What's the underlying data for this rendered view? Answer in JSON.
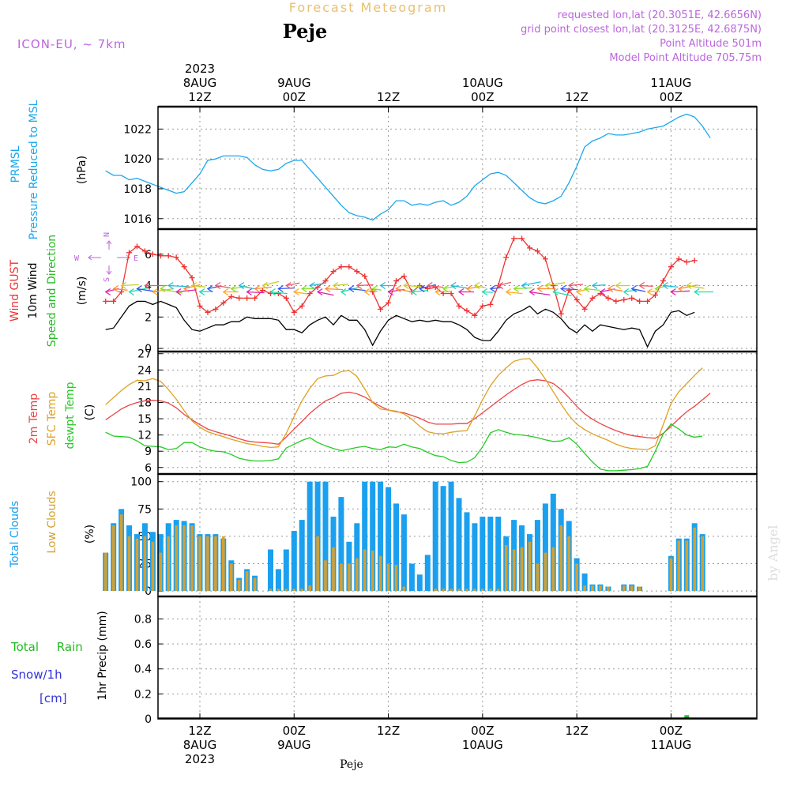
{
  "header": {
    "title": "Forecast Meteogram",
    "location": "Peje",
    "model": "ICON-EU, ~ 7km",
    "requested": "requested lon,lat (20.3051E, 42.6656N)",
    "grid_point": "grid point closest lon,lat (20.3125E, 42.6875N)",
    "point_altitude": "Point Altitude 501m",
    "model_altitude": "Model Point Altitude 705.75m",
    "footer_location": "Peje",
    "watermark": "by Angel"
  },
  "time_axis": {
    "top_labels": [
      {
        "hour": 12,
        "lines": [
          "2023",
          "8AUG",
          "12Z"
        ]
      },
      {
        "hour": 24,
        "lines": [
          "9AUG",
          "00Z"
        ]
      },
      {
        "hour": 36,
        "lines": [
          "12Z"
        ]
      },
      {
        "hour": 48,
        "lines": [
          "10AUG",
          "00Z"
        ]
      },
      {
        "hour": 60,
        "lines": [
          "12Z"
        ]
      },
      {
        "hour": 72,
        "lines": [
          "11AUG",
          "00Z"
        ]
      }
    ],
    "bottom_labels": [
      {
        "hour": 12,
        "lines": [
          "12Z",
          "8AUG",
          "2023"
        ]
      },
      {
        "hour": 24,
        "lines": [
          "00Z",
          "9AUG"
        ]
      },
      {
        "hour": 36,
        "lines": [
          "12Z"
        ]
      },
      {
        "hour": 48,
        "lines": [
          "00Z",
          "10AUG"
        ]
      },
      {
        "hour": 60,
        "lines": [
          "12Z"
        ]
      },
      {
        "hour": 72,
        "lines": [
          "00Z",
          "11AUG"
        ]
      }
    ]
  },
  "colors": {
    "pressure": "#1aa7ee",
    "gust": "#ee3333",
    "wind": "#000000",
    "direction_label": "#22bb22",
    "temp": "#ee4444",
    "sfc": "#e0a020",
    "dew": "#22cc22",
    "total_clouds": "#1aa0ee",
    "low_clouds": "#d4a032",
    "rain": "#22bb22",
    "snow": "#3333dd",
    "header_purple": "#bb66dd",
    "title_gold": "#e8c070"
  },
  "chart_data": [
    {
      "type": "line",
      "panel": "pressure",
      "ylabel_lines": [
        "PRMSL",
        "Pressure Reduced to MSL"
      ],
      "unit": "(hPa)",
      "ylim": [
        1015.3,
        1023.5
      ],
      "yticks": [
        1016,
        1018,
        1020,
        1022
      ],
      "x_start": 0,
      "x_step": 1,
      "series": [
        {
          "name": "PRMSL",
          "values": [
            1019.2,
            1018.9,
            1018.9,
            1018.6,
            1018.7,
            1018.5,
            1018.3,
            1018.1,
            1017.9,
            1017.7,
            1017.8,
            1018.4,
            1019.0,
            1019.9,
            1020.0,
            1020.2,
            1020.2,
            1020.2,
            1020.1,
            1019.6,
            1019.3,
            1019.2,
            1019.3,
            1019.7,
            1019.9,
            1019.9,
            1019.3,
            1018.7,
            1018.1,
            1017.5,
            1016.9,
            1016.4,
            1016.2,
            1016.1,
            1015.9,
            1016.3,
            1016.6,
            1017.2,
            1017.2,
            1016.9,
            1017.0,
            1016.9,
            1017.1,
            1017.2,
            1016.9,
            1017.1,
            1017.5,
            1018.2,
            1018.6,
            1019.0,
            1019.1,
            1018.9,
            1018.4,
            1017.9,
            1017.4,
            1017.1,
            1017.0,
            1017.2,
            1017.5,
            1018.4,
            1019.5,
            1020.8,
            1021.2,
            1021.4,
            1021.7,
            1021.6,
            1021.6,
            1021.7,
            1021.8,
            1022.0,
            1022.1,
            1022.2,
            1022.5,
            1022.8,
            1023.0,
            1022.8,
            1022.2,
            1021.4
          ]
        }
      ]
    },
    {
      "type": "line",
      "panel": "wind",
      "ylabel_lines": [
        "Wind GUST",
        "10m Wind",
        "Speed and Direction"
      ],
      "unit": "(m/s)",
      "compass": [
        "N",
        "S",
        "W",
        "E"
      ],
      "ylim": [
        -0.2,
        7.6
      ],
      "yticks": [
        0,
        2,
        4,
        6
      ],
      "x_start": 0,
      "x_step": 1,
      "series": [
        {
          "name": "Wind GUST",
          "values": [
            3.0,
            3.0,
            3.6,
            6.1,
            6.5,
            6.2,
            6.0,
            5.9,
            5.9,
            5.8,
            5.2,
            4.5,
            2.7,
            2.3,
            2.5,
            2.9,
            3.3,
            3.2,
            3.2,
            3.2,
            3.7,
            3.5,
            3.5,
            3.2,
            2.3,
            2.7,
            3.5,
            3.9,
            4.3,
            4.9,
            5.2,
            5.2,
            4.9,
            4.6,
            3.6,
            2.5,
            2.9,
            4.3,
            4.6,
            3.6,
            4.0,
            3.8,
            3.9,
            3.5,
            3.5,
            2.7,
            2.4,
            2.1,
            2.7,
            2.8,
            4.0,
            5.8,
            7.0,
            7.0,
            6.4,
            6.2,
            5.7,
            4.0,
            2.2,
            3.7,
            3.1,
            2.5,
            3.2,
            3.5,
            3.2,
            3.0,
            3.1,
            3.2,
            3.0,
            3.0,
            3.4,
            4.3,
            5.2,
            5.7,
            5.5,
            5.6
          ]
        },
        {
          "name": "10m Wind",
          "values": [
            1.2,
            1.3,
            2.0,
            2.7,
            3.0,
            3.0,
            2.8,
            3.0,
            2.8,
            2.6,
            1.8,
            1.2,
            1.1,
            1.3,
            1.5,
            1.5,
            1.7,
            1.7,
            2.0,
            1.9,
            1.9,
            1.9,
            1.8,
            1.2,
            1.2,
            1.0,
            1.5,
            1.8,
            2.0,
            1.5,
            2.1,
            1.8,
            1.8,
            1.2,
            0.2,
            1.1,
            1.8,
            2.1,
            1.9,
            1.7,
            1.8,
            1.7,
            1.8,
            1.7,
            1.7,
            1.5,
            1.2,
            0.7,
            0.5,
            0.5,
            1.1,
            1.8,
            2.2,
            2.4,
            2.7,
            2.2,
            2.5,
            2.3,
            1.9,
            1.3,
            1.0,
            1.5,
            1.1,
            1.5,
            1.4,
            1.3,
            1.2,
            1.3,
            1.2,
            0.1,
            1.1,
            1.5,
            2.3,
            2.4,
            2.1,
            2.3
          ]
        }
      ]
    },
    {
      "type": "line",
      "panel": "temperature",
      "ylabel_lines": [
        "2m Temp",
        "SFC Temp",
        "dewpt Temp"
      ],
      "unit": "(C)",
      "ylim": [
        4.8,
        27.4
      ],
      "yticks": [
        6,
        9,
        12,
        15,
        18,
        21,
        24,
        27
      ],
      "x_start": 0,
      "x_step": 1,
      "series": [
        {
          "name": "2m Temp",
          "values": [
            14.8,
            15.8,
            16.8,
            17.5,
            18.0,
            18.3,
            18.4,
            18.3,
            17.9,
            17.0,
            15.8,
            14.8,
            13.9,
            13.1,
            12.6,
            12.2,
            11.8,
            11.3,
            10.9,
            10.7,
            10.6,
            10.5,
            10.3,
            11.6,
            13.1,
            14.5,
            16.0,
            17.2,
            18.3,
            18.9,
            19.7,
            19.9,
            19.6,
            19.0,
            18.1,
            17.3,
            16.6,
            16.3,
            16.1,
            15.6,
            15.1,
            14.4,
            14.0,
            14.0,
            14.0,
            14.1,
            14.1,
            15.0,
            16.1,
            17.2,
            18.3,
            19.4,
            20.4,
            21.3,
            22.0,
            22.2,
            22.0,
            21.5,
            20.4,
            18.9,
            17.3,
            15.9,
            14.9,
            14.1,
            13.4,
            12.8,
            12.3,
            11.9,
            11.7,
            11.5,
            11.4,
            12.3,
            13.6,
            15.0,
            16.3,
            17.3,
            18.5,
            19.7
          ]
        },
        {
          "name": "SFC Temp",
          "values": [
            17.6,
            18.9,
            20.2,
            21.3,
            22.1,
            22.0,
            22.4,
            21.9,
            20.4,
            18.6,
            16.5,
            14.6,
            13.4,
            12.6,
            12.1,
            11.7,
            11.2,
            10.8,
            10.4,
            10.2,
            9.9,
            9.7,
            9.8,
            12.3,
            15.4,
            18.3,
            20.6,
            22.4,
            22.9,
            23.0,
            23.7,
            23.9,
            22.8,
            20.5,
            18.0,
            16.8,
            16.6,
            16.4,
            15.9,
            14.9,
            13.6,
            12.6,
            12.3,
            12.2,
            12.5,
            12.7,
            12.8,
            15.5,
            18.5,
            21.1,
            23.0,
            24.4,
            25.6,
            26.0,
            26.1,
            24.4,
            22.3,
            20.0,
            17.7,
            15.6,
            14.0,
            13.0,
            12.2,
            11.6,
            11.0,
            10.3,
            9.8,
            9.5,
            9.4,
            9.3,
            10.0,
            13.9,
            17.8,
            20.0,
            21.5,
            23.0,
            24.4
          ]
        },
        {
          "name": "dewpt Temp",
          "values": [
            12.5,
            11.8,
            11.7,
            11.6,
            10.9,
            10.0,
            9.9,
            9.8,
            9.3,
            9.5,
            10.6,
            10.6,
            9.8,
            9.3,
            9.0,
            8.9,
            8.4,
            7.7,
            7.4,
            7.2,
            7.2,
            7.3,
            7.6,
            9.6,
            10.3,
            11.0,
            11.5,
            10.6,
            10.0,
            9.5,
            9.1,
            9.4,
            9.7,
            9.9,
            9.5,
            9.3,
            9.8,
            9.7,
            10.3,
            9.8,
            9.5,
            8.8,
            8.2,
            8.0,
            7.3,
            6.9,
            7.0,
            7.8,
            9.8,
            12.4,
            13.0,
            12.5,
            12.1,
            12.0,
            11.8,
            11.5,
            11.1,
            10.8,
            10.9,
            11.5,
            10.3,
            8.6,
            7.0,
            5.7,
            5.4,
            5.4,
            5.5,
            5.6,
            5.8,
            6.2,
            9.0,
            12.2,
            14.0,
            13.1,
            12.0,
            11.6,
            11.8
          ]
        }
      ]
    },
    {
      "type": "bar",
      "panel": "clouds",
      "ylabel_lines": [
        "Total Clouds",
        "Low Clouds"
      ],
      "unit": "(%)",
      "ylim": [
        -5,
        107
      ],
      "yticks": [
        0,
        25,
        50,
        75,
        100
      ],
      "x_start": 0,
      "x_step": 1,
      "series": [
        {
          "name": "Total Clouds",
          "values": [
            35,
            62,
            75,
            60,
            52,
            62,
            54,
            52,
            62,
            65,
            64,
            62,
            52,
            52,
            52,
            48,
            28,
            12,
            20,
            14,
            0,
            38,
            20,
            38,
            55,
            65,
            100,
            100,
            100,
            68,
            86,
            45,
            62,
            100,
            100,
            100,
            95,
            80,
            70,
            25,
            15,
            33,
            100,
            96,
            100,
            85,
            72,
            62,
            68,
            68,
            68,
            50,
            65,
            60,
            52,
            65,
            80,
            89,
            75,
            64,
            30,
            16,
            6,
            6,
            4,
            0,
            6,
            6,
            4,
            0,
            0,
            0,
            32,
            48,
            48,
            62,
            52
          ]
        },
        {
          "name": "Low Clouds",
          "values": [
            35,
            60,
            70,
            50,
            48,
            50,
            45,
            35,
            50,
            60,
            60,
            60,
            50,
            50,
            50,
            50,
            25,
            10,
            18,
            12,
            0,
            2,
            2,
            2,
            2,
            2,
            5,
            50,
            28,
            40,
            25,
            25,
            30,
            38,
            37,
            32,
            25,
            24,
            4,
            0,
            0,
            0,
            2,
            2,
            2,
            2,
            2,
            2,
            2,
            2,
            2,
            42,
            38,
            40,
            45,
            25,
            35,
            40,
            60,
            50,
            25,
            5,
            5,
            5,
            4,
            0,
            5,
            5,
            4,
            0,
            0,
            0,
            30,
            46,
            46,
            58,
            50
          ]
        }
      ]
    },
    {
      "type": "bar",
      "panel": "precipitation",
      "ylabel_lines": [
        "Total Rain",
        "Snow/1h",
        "[cm]"
      ],
      "unit": "1hr Precip (mm)",
      "ylim": [
        0,
        0.98
      ],
      "yticks": [
        0,
        0.2,
        0.4,
        0.6,
        0.8
      ],
      "series": [
        {
          "name": "Total Rain",
          "x": [
            74
          ],
          "values": [
            0.03
          ]
        }
      ]
    }
  ]
}
